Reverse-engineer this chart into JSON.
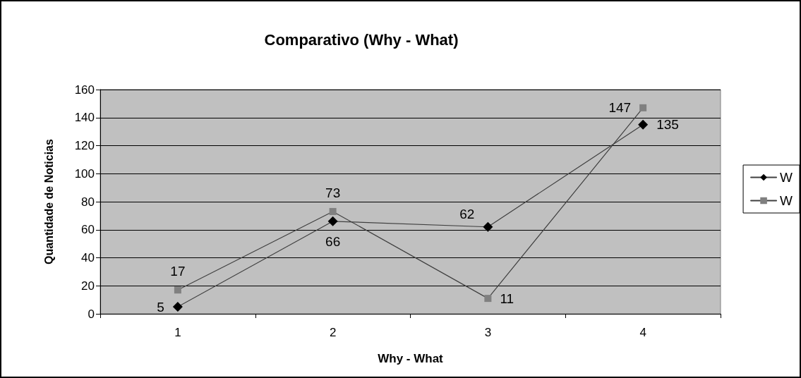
{
  "chart_data": {
    "type": "line",
    "title": "Comparativo (Why - What)",
    "xlabel": "Why - What",
    "ylabel": "Quantidade de Noticias",
    "categories": [
      "1",
      "2",
      "3",
      "4"
    ],
    "series": [
      {
        "name": "W",
        "color": "#000000",
        "marker": "diamond",
        "values": [
          5,
          66,
          62,
          135
        ]
      },
      {
        "name": "W",
        "color": "#808080",
        "marker": "square",
        "values": [
          17,
          73,
          11,
          147
        ]
      }
    ],
    "ylim": [
      0,
      160
    ],
    "yticks": [
      0,
      20,
      40,
      60,
      80,
      100,
      120,
      140,
      160
    ],
    "grid": "y",
    "legend": "right",
    "data_labels": true
  }
}
